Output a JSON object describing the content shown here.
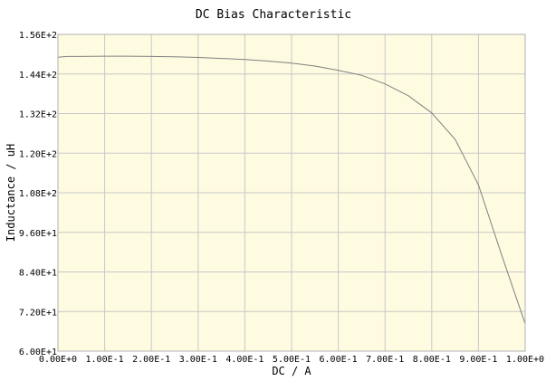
{
  "chart_data": {
    "type": "line",
    "title": "DC Bias Characteristic",
    "xlabel": "DC / A",
    "ylabel": "Inductance / uH",
    "xlim": [
      0,
      1.0
    ],
    "ylim": [
      60,
      156
    ],
    "x_ticks": [
      0,
      0.1,
      0.2,
      0.3,
      0.4,
      0.5,
      0.6,
      0.7,
      0.8,
      0.9,
      1.0
    ],
    "x_tick_labels": [
      "0.00E+0",
      "1.00E-1",
      "2.00E-1",
      "3.00E-1",
      "4.00E-1",
      "5.00E-1",
      "6.00E-1",
      "7.00E-1",
      "8.00E-1",
      "9.00E-1",
      "1.00E+0"
    ],
    "y_ticks": [
      60,
      72,
      84,
      96,
      108,
      120,
      132,
      144,
      156
    ],
    "y_tick_labels": [
      "6.00E+1",
      "7.20E+1",
      "8.40E+1",
      "9.60E+1",
      "1.08E+2",
      "1.20E+2",
      "1.32E+2",
      "1.44E+2",
      "1.56E+2"
    ],
    "grid": true,
    "plot_background": "#fefbe0",
    "grid_color": "#c8c8c8",
    "line_color": "#808080",
    "series": [
      {
        "x": [
          0,
          0.02,
          0.05,
          0.1,
          0.15,
          0.2,
          0.25,
          0.3,
          0.35,
          0.4,
          0.45,
          0.5,
          0.55,
          0.6,
          0.65,
          0.7,
          0.75,
          0.8,
          0.85,
          0.9,
          0.95,
          1.0
        ],
        "y": [
          149.1,
          149.3,
          149.3,
          149.4,
          149.4,
          149.3,
          149.2,
          149.0,
          148.7,
          148.4,
          147.9,
          147.3,
          146.4,
          145.1,
          143.6,
          141.0,
          137.4,
          132.2,
          124.2,
          110.4,
          89.0,
          68.3
        ]
      }
    ]
  }
}
